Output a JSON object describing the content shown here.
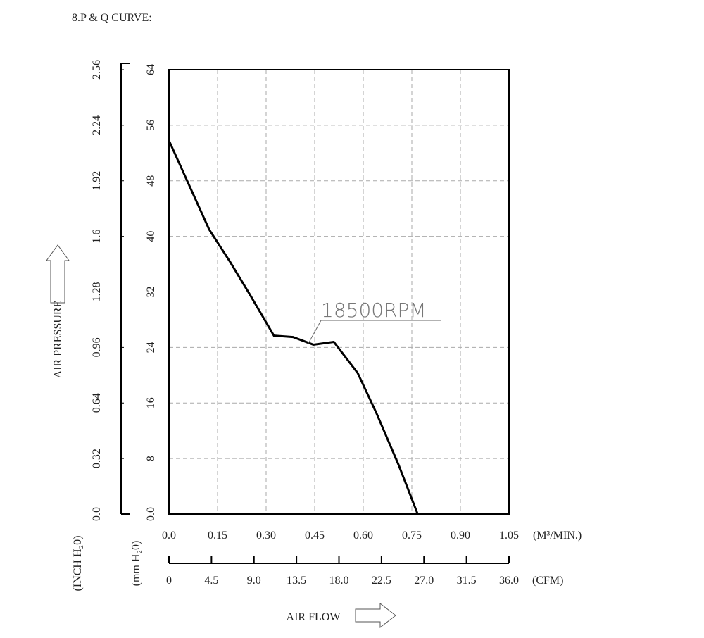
{
  "chart_data": {
    "type": "line",
    "title": "8.P & Q CURVE:",
    "x_label": "AIR FLOW",
    "y_label": "AIR PRESSURE",
    "x_unit": "(M³/MIN.)",
    "x2_unit": "(CFM)",
    "y_unit": "(mm H₂0)",
    "y2_unit": "(INCH H₂0)",
    "x": [
      0,
      0.124,
      0.189,
      0.25,
      0.324,
      0.383,
      0.446,
      0.509,
      0.583,
      0.641,
      0.709,
      0.768
    ],
    "series": [
      {
        "name": "18500RPM",
        "color": "#000000",
        "values": [
          53.8,
          41.0,
          36.3,
          31.6,
          25.7,
          25.5,
          24.4,
          24.8,
          20.3,
          14.5,
          7.1,
          0
        ]
      }
    ],
    "xlim": [
      0,
      1.05
    ],
    "xticks": [
      {
        "value": 0,
        "label": "0.0"
      },
      0.15,
      {
        "value": 0.3,
        "label": "0.30"
      },
      0.45,
      {
        "value": 0.6,
        "label": "0.60"
      },
      0.75,
      {
        "value": 0.9,
        "label": "0.90"
      },
      1.05
    ],
    "x2lim": [
      0,
      36
    ],
    "x2ticks": [
      0,
      4.5,
      {
        "value": 9,
        "label": "9.0"
      },
      13.5,
      {
        "value": 18,
        "label": "18.0"
      },
      22.5,
      {
        "value": 27,
        "label": "27.0"
      },
      31.5,
      {
        "value": 36,
        "label": "36.0"
      }
    ],
    "ylim": [
      0,
      64
    ],
    "yticks": [
      {
        "value": 0,
        "label": "0.0"
      },
      8,
      16,
      24,
      32,
      40,
      48,
      56,
      64
    ],
    "y2lim": [
      0,
      2.56
    ],
    "y2ticks": [
      {
        "value": 0,
        "label": "0.0"
      },
      0.32,
      0.64,
      0.96,
      1.28,
      1.6,
      1.92,
      2.24,
      2.56
    ],
    "grid": true
  }
}
